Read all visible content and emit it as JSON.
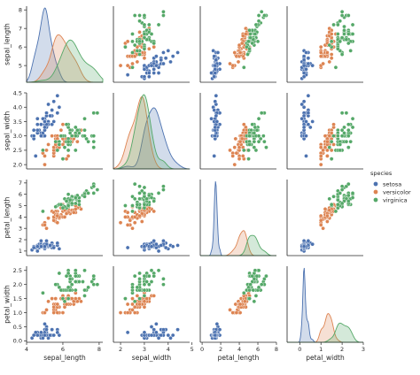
{
  "chart_data": {
    "type": "scatter",
    "variables": [
      "sepal_length",
      "sepal_width",
      "petal_length",
      "petal_width"
    ],
    "hue_label": "species",
    "grid": false,
    "legend_position": "right",
    "series": [
      {
        "name": "setosa",
        "color": "#4c72b0"
      },
      {
        "name": "versicolor",
        "color": "#dd8452"
      },
      {
        "name": "virginica",
        "color": "#55a868"
      }
    ],
    "axes": {
      "sepal_length": {
        "range": [
          4.0,
          8.2
        ],
        "ticks": [
          4,
          6,
          8
        ],
        "row_range": [
          4.1,
          8.2
        ],
        "row_ticks": [
          5,
          6,
          7,
          8
        ]
      },
      "sepal_width": {
        "range": [
          1.7,
          4.9
        ],
        "ticks": [
          2,
          3,
          4,
          5
        ],
        "row_range": [
          1.85,
          4.5
        ],
        "row_ticks": [
          2.0,
          2.5,
          3.0,
          3.5,
          4.0,
          4.5
        ],
        "row_tick_labels": [
          "2.0",
          "2.5",
          "3.0",
          "3.5",
          "4.0",
          "4.5"
        ]
      },
      "petal_length": {
        "range": [
          -0.2,
          8.0
        ],
        "ticks": [
          0,
          2,
          4,
          6,
          8
        ],
        "row_range": [
          0.6,
          7.3
        ],
        "row_ticks": [
          1,
          2,
          3,
          4,
          5,
          6,
          7
        ]
      },
      "petal_width": {
        "range": [
          -0.6,
          3.0
        ],
        "ticks": [
          0,
          1,
          2,
          3
        ],
        "row_range": [
          -0.05,
          2.65
        ],
        "row_ticks": [
          0.0,
          0.5,
          1.0,
          1.5,
          2.0,
          2.5
        ],
        "row_tick_labels": [
          "0.0",
          "0.5",
          "1.0",
          "1.5",
          "2.0",
          "2.5"
        ]
      }
    },
    "data": {
      "setosa": [
        [
          5.1,
          3.5,
          1.4,
          0.2
        ],
        [
          4.9,
          3.0,
          1.4,
          0.2
        ],
        [
          4.7,
          3.2,
          1.3,
          0.2
        ],
        [
          4.6,
          3.1,
          1.5,
          0.2
        ],
        [
          5.0,
          3.6,
          1.4,
          0.2
        ],
        [
          5.4,
          3.9,
          1.7,
          0.4
        ],
        [
          4.6,
          3.4,
          1.4,
          0.3
        ],
        [
          5.0,
          3.4,
          1.5,
          0.2
        ],
        [
          4.4,
          2.9,
          1.4,
          0.2
        ],
        [
          4.9,
          3.1,
          1.5,
          0.1
        ],
        [
          5.4,
          3.7,
          1.5,
          0.2
        ],
        [
          4.8,
          3.4,
          1.6,
          0.2
        ],
        [
          4.8,
          3.0,
          1.4,
          0.1
        ],
        [
          4.3,
          3.0,
          1.1,
          0.1
        ],
        [
          5.8,
          4.0,
          1.2,
          0.2
        ],
        [
          5.7,
          4.4,
          1.5,
          0.4
        ],
        [
          5.4,
          3.9,
          1.3,
          0.4
        ],
        [
          5.1,
          3.5,
          1.4,
          0.3
        ],
        [
          5.7,
          3.8,
          1.7,
          0.3
        ],
        [
          5.1,
          3.8,
          1.5,
          0.3
        ],
        [
          5.4,
          3.4,
          1.7,
          0.2
        ],
        [
          5.1,
          3.7,
          1.5,
          0.4
        ],
        [
          4.6,
          3.6,
          1.0,
          0.2
        ],
        [
          5.1,
          3.3,
          1.7,
          0.5
        ],
        [
          4.8,
          3.4,
          1.9,
          0.2
        ],
        [
          5.0,
          3.0,
          1.6,
          0.2
        ],
        [
          5.0,
          3.4,
          1.6,
          0.4
        ],
        [
          5.2,
          3.5,
          1.5,
          0.2
        ],
        [
          5.2,
          3.4,
          1.4,
          0.2
        ],
        [
          4.7,
          3.2,
          1.6,
          0.2
        ],
        [
          4.8,
          3.1,
          1.6,
          0.2
        ],
        [
          5.4,
          3.4,
          1.5,
          0.4
        ],
        [
          5.2,
          4.1,
          1.5,
          0.1
        ],
        [
          5.5,
          4.2,
          1.4,
          0.2
        ],
        [
          4.9,
          3.1,
          1.5,
          0.2
        ],
        [
          5.0,
          3.2,
          1.2,
          0.2
        ],
        [
          5.5,
          3.5,
          1.3,
          0.2
        ],
        [
          4.9,
          3.6,
          1.4,
          0.1
        ],
        [
          4.4,
          3.0,
          1.3,
          0.2
        ],
        [
          5.1,
          3.4,
          1.5,
          0.2
        ],
        [
          5.0,
          3.5,
          1.3,
          0.3
        ],
        [
          4.5,
          2.3,
          1.3,
          0.3
        ],
        [
          4.4,
          3.2,
          1.3,
          0.2
        ],
        [
          5.0,
          3.5,
          1.6,
          0.6
        ],
        [
          5.1,
          3.8,
          1.9,
          0.4
        ],
        [
          4.8,
          3.0,
          1.4,
          0.3
        ],
        [
          5.1,
          3.8,
          1.6,
          0.2
        ],
        [
          4.6,
          3.2,
          1.4,
          0.2
        ],
        [
          5.3,
          3.7,
          1.5,
          0.2
        ],
        [
          5.0,
          3.3,
          1.4,
          0.2
        ]
      ],
      "versicolor": [
        [
          7.0,
          3.2,
          4.7,
          1.4
        ],
        [
          6.4,
          3.2,
          4.5,
          1.5
        ],
        [
          6.9,
          3.1,
          4.9,
          1.5
        ],
        [
          5.5,
          2.3,
          4.0,
          1.3
        ],
        [
          6.5,
          2.8,
          4.6,
          1.5
        ],
        [
          5.7,
          2.8,
          4.5,
          1.3
        ],
        [
          6.3,
          3.3,
          4.7,
          1.6
        ],
        [
          4.9,
          2.4,
          3.3,
          1.0
        ],
        [
          6.6,
          2.9,
          4.6,
          1.3
        ],
        [
          5.2,
          2.7,
          3.9,
          1.4
        ],
        [
          5.0,
          2.0,
          3.5,
          1.0
        ],
        [
          5.9,
          3.0,
          4.2,
          1.5
        ],
        [
          6.0,
          2.2,
          4.0,
          1.0
        ],
        [
          6.1,
          2.9,
          4.7,
          1.4
        ],
        [
          5.6,
          2.9,
          3.6,
          1.3
        ],
        [
          6.7,
          3.1,
          4.4,
          1.4
        ],
        [
          5.6,
          3.0,
          4.5,
          1.5
        ],
        [
          5.8,
          2.7,
          4.1,
          1.0
        ],
        [
          6.2,
          2.2,
          4.5,
          1.5
        ],
        [
          5.6,
          2.5,
          3.9,
          1.1
        ],
        [
          5.9,
          3.2,
          4.8,
          1.8
        ],
        [
          6.1,
          2.8,
          4.0,
          1.3
        ],
        [
          6.3,
          2.5,
          4.9,
          1.5
        ],
        [
          6.1,
          2.8,
          4.7,
          1.2
        ],
        [
          6.4,
          2.9,
          4.3,
          1.3
        ],
        [
          6.6,
          3.0,
          4.4,
          1.4
        ],
        [
          6.8,
          2.8,
          4.8,
          1.4
        ],
        [
          6.7,
          3.0,
          5.0,
          1.7
        ],
        [
          6.0,
          2.9,
          4.5,
          1.5
        ],
        [
          5.7,
          2.6,
          3.5,
          1.0
        ],
        [
          5.5,
          2.4,
          3.8,
          1.1
        ],
        [
          5.5,
          2.4,
          3.7,
          1.0
        ],
        [
          5.8,
          2.7,
          3.9,
          1.2
        ],
        [
          6.0,
          2.7,
          5.1,
          1.6
        ],
        [
          5.4,
          3.0,
          4.5,
          1.5
        ],
        [
          6.0,
          3.4,
          4.5,
          1.6
        ],
        [
          6.7,
          3.1,
          4.7,
          1.5
        ],
        [
          6.3,
          2.3,
          4.4,
          1.3
        ],
        [
          5.6,
          3.0,
          4.1,
          1.3
        ],
        [
          5.5,
          2.5,
          4.0,
          1.3
        ],
        [
          5.5,
          2.6,
          4.4,
          1.2
        ],
        [
          6.1,
          3.0,
          4.6,
          1.4
        ],
        [
          5.8,
          2.6,
          4.0,
          1.2
        ],
        [
          5.0,
          2.3,
          3.3,
          1.0
        ],
        [
          5.6,
          2.7,
          4.2,
          1.3
        ],
        [
          5.7,
          3.0,
          4.2,
          1.2
        ],
        [
          5.7,
          2.9,
          4.2,
          1.3
        ],
        [
          6.2,
          2.9,
          4.3,
          1.3
        ],
        [
          5.1,
          2.5,
          3.0,
          1.1
        ],
        [
          5.7,
          2.8,
          4.1,
          1.3
        ]
      ],
      "virginica": [
        [
          6.3,
          3.3,
          6.0,
          2.5
        ],
        [
          5.8,
          2.7,
          5.1,
          1.9
        ],
        [
          7.1,
          3.0,
          5.9,
          2.1
        ],
        [
          6.3,
          2.9,
          5.6,
          1.8
        ],
        [
          6.5,
          3.0,
          5.8,
          2.2
        ],
        [
          7.6,
          3.0,
          6.6,
          2.1
        ],
        [
          4.9,
          2.5,
          4.5,
          1.7
        ],
        [
          7.3,
          2.9,
          6.3,
          1.8
        ],
        [
          6.7,
          2.5,
          5.8,
          1.8
        ],
        [
          7.2,
          3.6,
          6.1,
          2.5
        ],
        [
          6.5,
          3.2,
          5.1,
          2.0
        ],
        [
          6.4,
          2.7,
          5.3,
          1.9
        ],
        [
          6.8,
          3.0,
          5.5,
          2.1
        ],
        [
          5.7,
          2.5,
          5.0,
          2.0
        ],
        [
          5.8,
          2.8,
          5.1,
          2.4
        ],
        [
          6.4,
          3.2,
          5.3,
          2.3
        ],
        [
          6.5,
          3.0,
          5.5,
          1.8
        ],
        [
          7.7,
          3.8,
          6.7,
          2.2
        ],
        [
          7.7,
          2.6,
          6.9,
          2.3
        ],
        [
          6.0,
          2.2,
          5.0,
          1.5
        ],
        [
          6.9,
          3.2,
          5.7,
          2.3
        ],
        [
          5.6,
          2.8,
          4.9,
          2.0
        ],
        [
          7.7,
          2.8,
          6.7,
          2.0
        ],
        [
          6.3,
          2.7,
          4.9,
          1.8
        ],
        [
          6.7,
          3.3,
          5.7,
          2.1
        ],
        [
          7.2,
          3.2,
          6.0,
          1.8
        ],
        [
          6.2,
          2.8,
          4.8,
          1.8
        ],
        [
          6.1,
          3.0,
          4.9,
          1.8
        ],
        [
          6.4,
          2.8,
          5.6,
          2.1
        ],
        [
          7.2,
          3.0,
          5.8,
          1.6
        ],
        [
          7.4,
          2.8,
          6.1,
          1.9
        ],
        [
          7.9,
          3.8,
          6.4,
          2.0
        ],
        [
          6.4,
          2.8,
          5.6,
          2.2
        ],
        [
          6.3,
          2.8,
          5.1,
          1.5
        ],
        [
          6.1,
          2.6,
          5.6,
          1.4
        ],
        [
          7.7,
          3.0,
          6.1,
          2.3
        ],
        [
          6.3,
          3.4,
          5.6,
          2.4
        ],
        [
          6.4,
          3.1,
          5.5,
          1.8
        ],
        [
          6.0,
          3.0,
          4.8,
          1.8
        ],
        [
          6.9,
          3.1,
          5.4,
          2.1
        ],
        [
          6.7,
          3.1,
          5.6,
          2.4
        ],
        [
          6.9,
          3.1,
          5.1,
          2.3
        ],
        [
          5.8,
          2.7,
          5.1,
          1.9
        ],
        [
          6.8,
          3.2,
          5.9,
          2.3
        ],
        [
          6.7,
          3.3,
          5.7,
          2.5
        ],
        [
          6.7,
          3.0,
          5.2,
          2.3
        ],
        [
          6.3,
          2.5,
          5.0,
          1.9
        ],
        [
          6.5,
          3.0,
          5.2,
          2.0
        ],
        [
          6.2,
          3.4,
          5.4,
          2.3
        ],
        [
          5.9,
          3.0,
          5.1,
          1.8
        ]
      ]
    }
  }
}
